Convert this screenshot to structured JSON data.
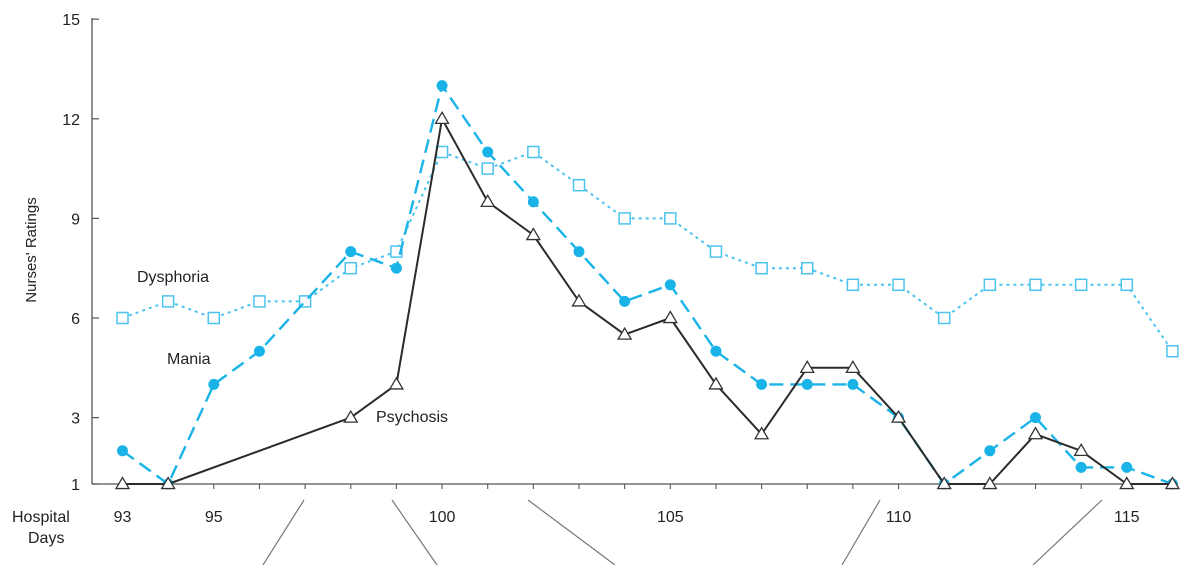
{
  "chart_data": {
    "type": "line",
    "title": "",
    "ylabel": "Nurses' Ratings",
    "xlabel_lines": [
      "Hospital",
      "Days"
    ],
    "ylim": [
      1,
      15
    ],
    "xlim": [
      93,
      116
    ],
    "yticks": [
      1,
      3,
      6,
      9,
      12,
      15
    ],
    "xticks": [
      93,
      95,
      100,
      105,
      110,
      115
    ],
    "colors": {
      "dysphoria": "#4cc3ee",
      "mania": "#19b3e8",
      "psychosis": "#2b2b2b"
    },
    "series": [
      {
        "name": "Dysphoria",
        "marker": "open-square",
        "style": "dotted",
        "points": [
          [
            93,
            6
          ],
          [
            94,
            6.5
          ],
          [
            95,
            6
          ],
          [
            96,
            6.5
          ],
          [
            97,
            6.5
          ],
          [
            98,
            7.5
          ],
          [
            99,
            8
          ],
          [
            100,
            11
          ],
          [
            101,
            10.5
          ],
          [
            102,
            11
          ],
          [
            103,
            10
          ],
          [
            104,
            9
          ],
          [
            105,
            9
          ],
          [
            106,
            8
          ],
          [
            107,
            7.5
          ],
          [
            108,
            7.5
          ],
          [
            109,
            7
          ],
          [
            110,
            7
          ],
          [
            111,
            6
          ],
          [
            112,
            7
          ],
          [
            113,
            7
          ],
          [
            114,
            7
          ],
          [
            115,
            7
          ],
          [
            116,
            5
          ]
        ]
      },
      {
        "name": "Mania",
        "marker": "filled-circle",
        "style": "dashed",
        "points": [
          [
            93,
            2
          ],
          [
            94,
            1
          ],
          [
            95,
            4
          ],
          [
            96,
            5
          ],
          [
            98,
            8
          ],
          [
            99,
            7.5
          ],
          [
            100,
            13
          ],
          [
            101,
            11
          ],
          [
            102,
            9.5
          ],
          [
            103,
            8
          ],
          [
            104,
            6.5
          ],
          [
            105,
            7
          ],
          [
            106,
            5
          ],
          [
            107,
            4
          ],
          [
            108,
            4
          ],
          [
            109,
            4
          ],
          [
            110,
            3
          ],
          [
            111,
            1
          ],
          [
            112,
            2
          ],
          [
            113,
            3
          ],
          [
            114,
            1.5
          ],
          [
            115,
            1.5
          ],
          [
            116,
            1
          ]
        ]
      },
      {
        "name": "Psychosis",
        "marker": "open-triangle",
        "style": "solid",
        "points": [
          [
            93,
            1
          ],
          [
            94,
            1
          ],
          [
            98,
            3
          ],
          [
            99,
            4
          ],
          [
            100,
            12
          ],
          [
            101,
            9.5
          ],
          [
            102,
            8.5
          ],
          [
            103,
            6.5
          ],
          [
            104,
            5.5
          ],
          [
            105,
            6
          ],
          [
            106,
            4
          ],
          [
            107,
            2.5
          ],
          [
            108,
            4.5
          ],
          [
            109,
            4.5
          ],
          [
            110,
            3
          ],
          [
            111,
            1
          ],
          [
            112,
            1
          ],
          [
            113,
            2.5
          ],
          [
            114,
            2
          ],
          [
            115,
            1
          ],
          [
            116,
            1
          ]
        ]
      }
    ]
  }
}
